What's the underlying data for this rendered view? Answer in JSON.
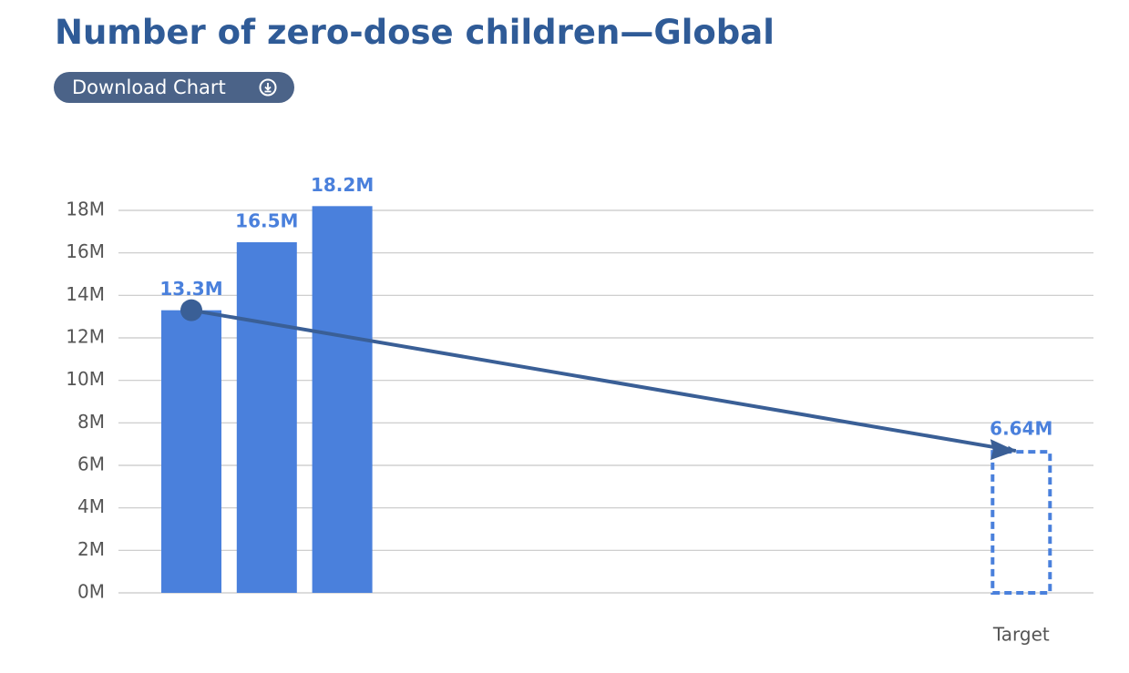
{
  "title": "Number of zero-dose children—Global",
  "download_button": "Download Chart",
  "chart_data": {
    "type": "bar",
    "categories": [
      null,
      null,
      null
    ],
    "values": [
      13.3,
      16.5,
      18.2
    ],
    "value_labels": [
      "13.3M",
      "16.5M",
      "18.2M"
    ],
    "color": "#4a80dc",
    "target": {
      "category": "Target",
      "value": 6.64,
      "value_label": "6.64M"
    },
    "arrow_color": "#3a5f96",
    "ylim": [
      0,
      18
    ],
    "yticks": [
      {
        "value": 0,
        "label": "0M"
      },
      {
        "value": 2,
        "label": "2M"
      },
      {
        "value": 4,
        "label": "4M"
      },
      {
        "value": 6,
        "label": "6M"
      },
      {
        "value": 8,
        "label": "8M"
      },
      {
        "value": 10,
        "label": "10M"
      },
      {
        "value": 12,
        "label": "12M"
      },
      {
        "value": 14,
        "label": "14M"
      },
      {
        "value": 16,
        "label": "16M"
      },
      {
        "value": 18,
        "label": "18M"
      }
    ],
    "grid": true
  }
}
